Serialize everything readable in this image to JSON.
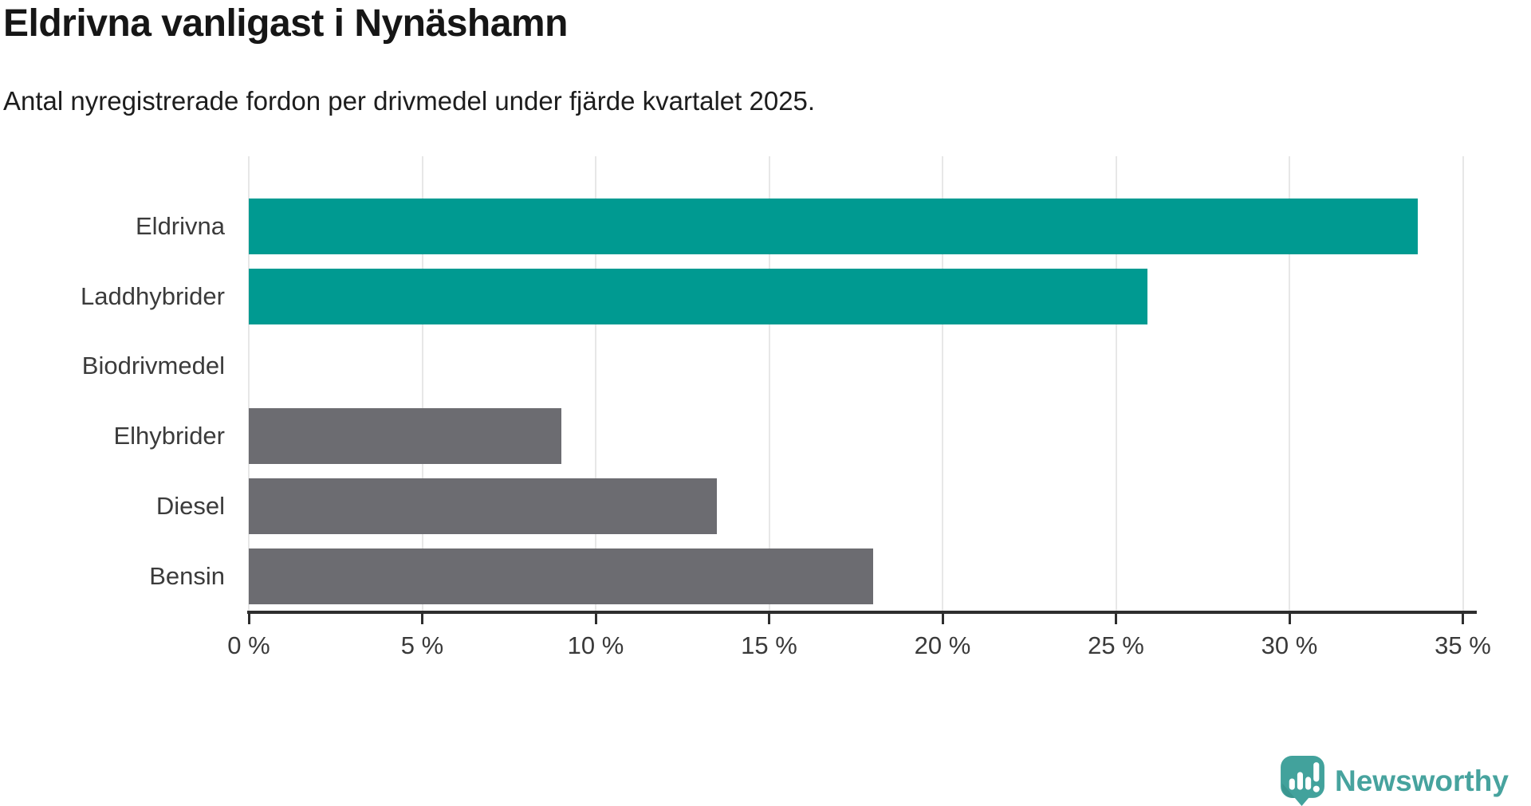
{
  "header": {
    "title": "Eldrivna vanligast i Nynäshamn",
    "subtitle": "Antal nyregistrerade fordon per drivmedel under fjärde kvartalet 2025."
  },
  "chart_data": {
    "type": "bar",
    "orientation": "horizontal",
    "title": "Eldrivna vanligast i Nynäshamn",
    "subtitle": "Antal nyregistrerade fordon per drivmedel under fjärde kvartalet 2025.",
    "categories": [
      "Eldrivna",
      "Laddhybrider",
      "Biodrivmedel",
      "Elhybrider",
      "Diesel",
      "Bensin"
    ],
    "values": [
      33.7,
      25.9,
      0,
      9.0,
      13.5,
      18.0
    ],
    "unit": "%",
    "xlim": [
      0,
      35
    ],
    "xticks": [
      0,
      5,
      10,
      15,
      20,
      25,
      30,
      35
    ],
    "xtick_suffix": " %",
    "grid": "vertical-only",
    "legend": "none",
    "bar_colors": [
      "#009a91",
      "#009a91",
      "#6c6c71",
      "#6c6c71",
      "#6c6c71",
      "#6c6c71"
    ],
    "highlight_color": "#009a91",
    "default_color": "#6c6c71"
  },
  "footer": {
    "brand": "Newsworthy",
    "brand_color": "#47a39e",
    "logo_icon": "newsworthy-speech-bubble-bar-chart"
  }
}
